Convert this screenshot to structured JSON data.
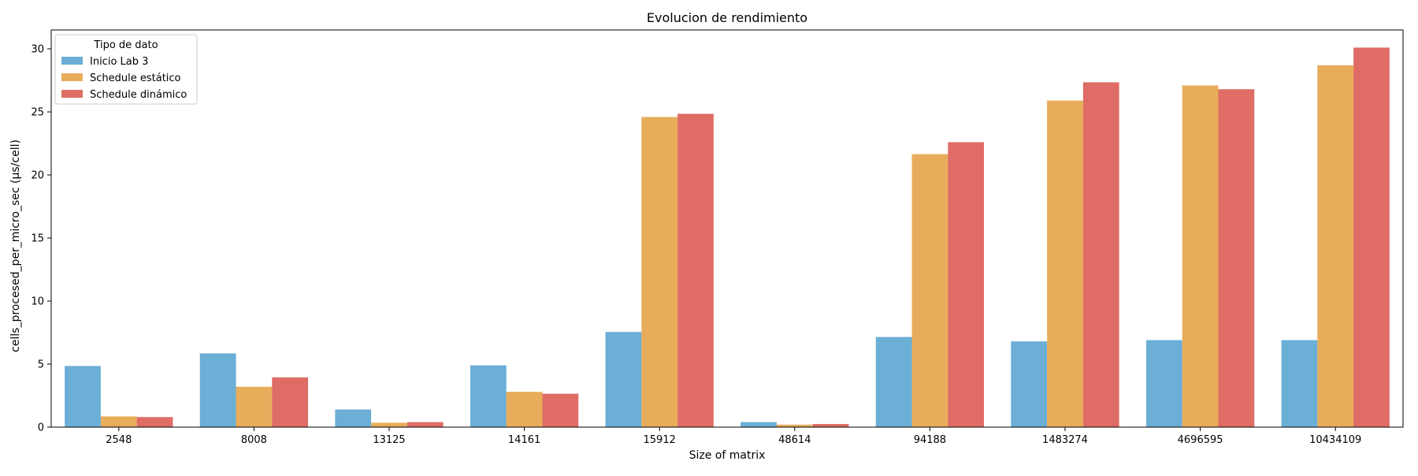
{
  "chart_data": {
    "type": "bar",
    "title": "Evolucion de rendimiento",
    "xlabel": "Size of matrix",
    "ylabel": "cells_procesed_per_micro_sec (µs/cell)",
    "ylim": [
      0,
      31.5
    ],
    "yticks": [
      0,
      5,
      10,
      15,
      20,
      25,
      30
    ],
    "grid": false,
    "legend": {
      "title": "Tipo de dato",
      "placement": "top-left"
    },
    "categories": [
      "2548",
      "8008",
      "13125",
      "14161",
      "15912",
      "48614",
      "94188",
      "1483274",
      "4696595",
      "10434109"
    ],
    "series": [
      {
        "name": "Inicio Lab 3",
        "color": "#6baed6",
        "values": [
          4.85,
          5.85,
          1.4,
          4.9,
          7.55,
          0.4,
          7.15,
          6.8,
          6.9,
          6.9
        ]
      },
      {
        "name": "Schedule estático",
        "color": "#e8ad5b",
        "values": [
          0.85,
          3.2,
          0.35,
          2.8,
          24.6,
          0.2,
          21.65,
          25.9,
          27.1,
          28.7
        ]
      },
      {
        "name": "Schedule dinámico",
        "color": "#df6d66",
        "values": [
          0.8,
          3.95,
          0.4,
          2.65,
          24.85,
          0.25,
          22.6,
          27.35,
          26.8,
          30.1
        ]
      }
    ]
  }
}
